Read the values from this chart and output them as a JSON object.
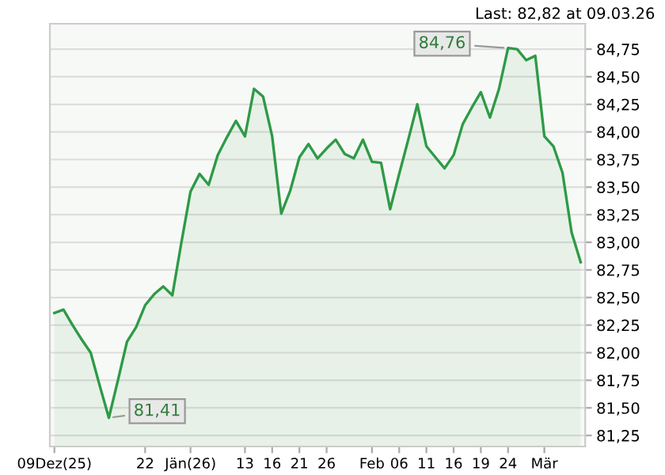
{
  "chart_data": {
    "type": "area",
    "title": "Last: 82,82 at 09.03.26",
    "categories": [
      "09Dez(25)",
      null,
      null,
      null,
      null,
      null,
      null,
      null,
      null,
      null,
      "22",
      null,
      null,
      null,
      null,
      "Jän(26)",
      null,
      null,
      null,
      null,
      null,
      "13",
      null,
      null,
      "16",
      null,
      null,
      "21",
      null,
      null,
      "26",
      null,
      null,
      null,
      null,
      "Feb",
      null,
      null,
      "06",
      null,
      null,
      "11",
      null,
      null,
      "16",
      null,
      null,
      "19",
      null,
      null,
      "24",
      null,
      null,
      null,
      "Mär",
      null,
      null,
      null,
      null
    ],
    "series": [
      {
        "color": "#2e9a46",
        "values": [
          82.36,
          82.39,
          82.25,
          82.12,
          82.0,
          81.7,
          81.41,
          81.75,
          82.1,
          82.23,
          82.43,
          82.53,
          82.6,
          82.52,
          83.0,
          83.46,
          83.62,
          83.52,
          83.79,
          83.95,
          84.1,
          83.96,
          84.39,
          84.32,
          83.96,
          83.26,
          83.47,
          83.77,
          83.89,
          83.76,
          83.85,
          83.93,
          83.8,
          83.76,
          83.93,
          83.73,
          83.72,
          83.3,
          83.62,
          83.93,
          84.25,
          83.87,
          83.77,
          83.67,
          83.79,
          84.07,
          84.22,
          84.36,
          84.13,
          84.39,
          84.76,
          84.75,
          84.65,
          84.69,
          83.96,
          83.87,
          83.63,
          83.09,
          82.82
        ]
      }
    ],
    "ylim": [
      81.15,
      84.98
    ],
    "yticks": [
      {
        "value": 81.25,
        "label": "81,25"
      },
      {
        "value": 81.5,
        "label": "81,50"
      },
      {
        "value": 81.75,
        "label": "81,75"
      },
      {
        "value": 82.0,
        "label": "82,00"
      },
      {
        "value": 82.25,
        "label": "82,25"
      },
      {
        "value": 82.5,
        "label": "82,50"
      },
      {
        "value": 82.75,
        "label": "82,75"
      },
      {
        "value": 83.0,
        "label": "83,00"
      },
      {
        "value": 83.25,
        "label": "83,25"
      },
      {
        "value": 83.5,
        "label": "83,50"
      },
      {
        "value": 83.75,
        "label": "83,75"
      },
      {
        "value": 84.0,
        "label": "84,00"
      },
      {
        "value": 84.25,
        "label": "84,25"
      },
      {
        "value": 84.5,
        "label": "84,50"
      },
      {
        "value": 84.75,
        "label": "84,75"
      }
    ],
    "grid": "y",
    "annotations": [
      {
        "text": "84,76",
        "x": "24",
        "y": 84.76
      },
      "81,41"
    ]
  }
}
